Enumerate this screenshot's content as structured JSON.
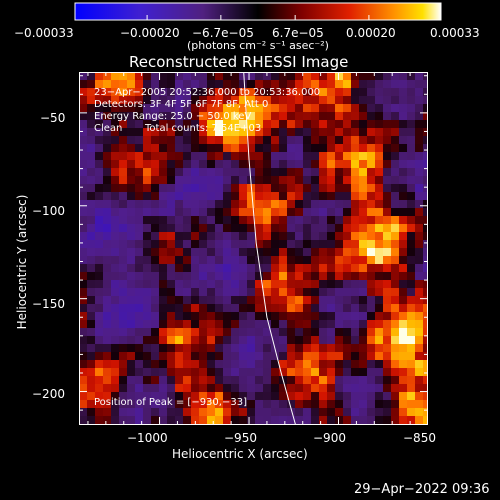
{
  "chart_data": {
    "type": "heatmap",
    "title": "Reconstructed RHESSI Image",
    "xlabel": "Heliocentric X (arcsec)",
    "ylabel": "Heliocentric Y (arcsec)",
    "xlim": [
      -1045,
      -850
    ],
    "ylim": [
      -218,
      -28
    ],
    "xticks": [
      -1000,
      -950,
      -900,
      -850
    ],
    "xtick_labels": [
      "−1000",
      "−950",
      "−900",
      "−850"
    ],
    "yticks": [
      -50,
      -100,
      -150,
      -200
    ],
    "ytick_labels": [
      "−50",
      "−100",
      "−150",
      "−200"
    ],
    "colorbar": {
      "label": "(photons cm⁻² s⁻¹ asec⁻²)",
      "range": [
        -0.00033,
        0.00033
      ],
      "ticks": [
        -0.00033,
        -0.0002,
        -6.7e-05,
        6.7e-05,
        0.0002,
        0.00033
      ],
      "tick_labels": [
        "−0.00033",
        "−0.00020",
        "−6.7e−05",
        "6.7e−05",
        "0.00020",
        "0.00033"
      ],
      "colormap": [
        "#0000ff",
        "#5020c0",
        "#502080",
        "#000000",
        "#700000",
        "#d01000",
        "#ff7000",
        "#ffd000",
        "#ffffff"
      ]
    },
    "annotations": {
      "time_range": "23−Apr−2005 20:52:36.000 to 20:53:36.000",
      "detectors": "Detectors: 3F 4F 5F 6F 7F 8F, Att 0",
      "energy": "Energy Range: 25.0 − 50.0 keV",
      "method": "Clean",
      "counts": "Total counts: 7.54E+03",
      "peak": "Position of Peak = [−930,−33]"
    },
    "limb_curve": [
      [
        -953,
        -28
      ],
      [
        -950,
        -75
      ],
      [
        -946,
        -120
      ],
      [
        -940,
        -160
      ],
      [
        -932,
        -190
      ],
      [
        -924,
        -218
      ]
    ],
    "grid": false
  },
  "footer": {
    "timestamp": "29−Apr−2022 09:36"
  }
}
